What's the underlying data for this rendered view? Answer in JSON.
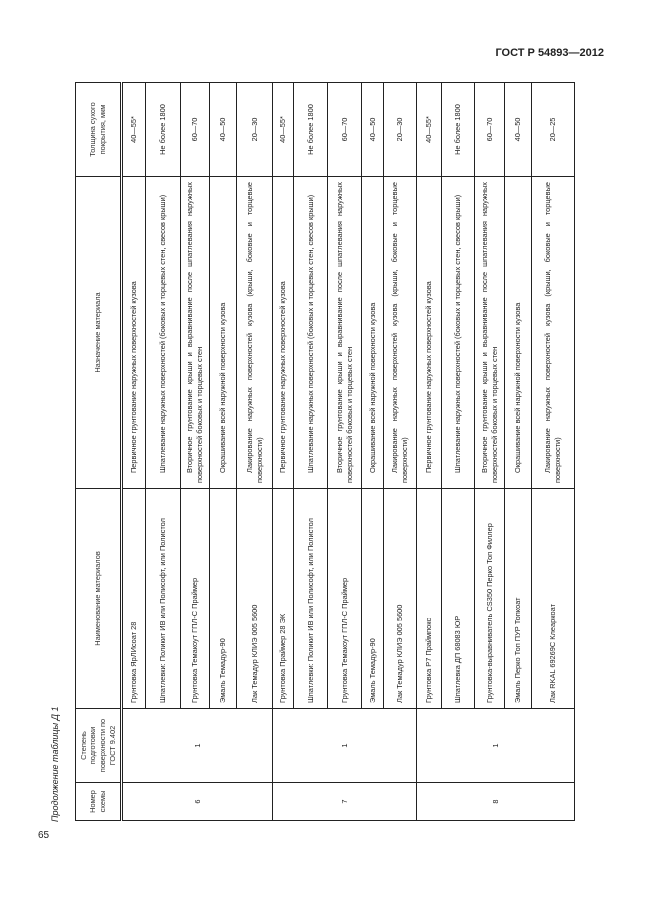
{
  "header": {
    "doc_title": "ГОСТ Р 54893—2012",
    "page_number": "65"
  },
  "caption": "Продолжение таблицы Д 1",
  "table": {
    "columns": [
      "Номер схемы",
      "Степень подготовки поверхности по ГОСТ 9.402",
      "Наименование материалов",
      "Назначение материала",
      "Толщина сухого покрытия, мкм"
    ],
    "groups": [
      {
        "scheme": "6",
        "degree": "1",
        "rows": [
          {
            "material": "Грунтовка ЯрЛИсоат 28",
            "purpose": "Первичное грунтование наружных поверхностей кузова",
            "thickness": "40—55*"
          },
          {
            "material": "Шпатлевки: Поликит ИВ или Полисофт, или Полистол",
            "purpose": "Шпатлевание наружных поверхностей (боковых и торцевых стен, свесов крыши)",
            "thickness": "Не более 1800"
          },
          {
            "material": "Грунтовка Темакоут ГПЛ-С Праймер",
            "purpose": "Вторичное грунтование крыши и выравнивание после шпатлевания наружных поверхностей боковых и торцевых стен",
            "thickness": "60—70"
          },
          {
            "material": "Эмаль Темадур-90",
            "purpose": "Окрашивание всей наружной поверхности кузова",
            "thickness": "40—50"
          },
          {
            "material": "Лак Темадур КЛИЭ 005 5600",
            "purpose": "Лакирование наружных поверхностей кузова (крыши, боковые и торцевые поверхности)",
            "thickness": "20—30"
          }
        ]
      },
      {
        "scheme": "7",
        "degree": "1",
        "rows": [
          {
            "material": "Грунтовка Праймер 28 ЭК",
            "purpose": "Первичное грунтование наружных поверхностей кузова",
            "thickness": "40—55*"
          },
          {
            "material": "Шпатлевки: Поликит ИВ или Полисофт, или Полистол",
            "purpose": "Шпатлевание наружных поверхностей (боковых и торцевых стен, свесов крыши)",
            "thickness": "Не более 1800"
          },
          {
            "material": "Грунтовка Темакоут ГПЛ-С Праймер",
            "purpose": "Вторичное грунтование крыши и выравнивание после шпатлевания наружных поверхностей боковых и торцевых стен",
            "thickness": "60—70"
          },
          {
            "material": "Эмаль Темадур-90",
            "purpose": "Окрашивание всей наружной поверхности кузова",
            "thickness": "40—50"
          },
          {
            "material": "Лак Темадур КЛИЭ 005 5600",
            "purpose": "Лакирование наружных поверхностей кузова (крыши, боковые и торцевые поверхности)",
            "thickness": "20—30"
          }
        ]
      },
      {
        "scheme": "8",
        "degree": "1",
        "rows": [
          {
            "material": "Грунтовка Р7 Праймпокс",
            "purpose": "Первичное грунтование наружных поверхностей кузова",
            "thickness": "40—55*"
          },
          {
            "material": "Шпатлевка ДП 68083 ЮР",
            "purpose": "Шпатлевание наружных поверхностей (боковых и торцевых стен, свесов крыши)",
            "thickness": "Не более 1800"
          },
          {
            "material": "Грунтовка-выравниватель CS350 Перко Топ Филлер",
            "purpose": "Вторичное грунтование крыши и выравнивание после шпатлевания наружных поверхностей боковых и торцевых стен",
            "thickness": "60—70"
          },
          {
            "material": "Эмаль Перко Топ ПУР Топкоат",
            "purpose": "Окрашивание всей наружной поверхности кузова",
            "thickness": "40—50"
          },
          {
            "material": "Лак RKAL 69269C Клеаркоат",
            "purpose": "Лакирование наружных поверхностей кузова (крыши, боковые и торцевые поверхности)",
            "thickness": "20—25"
          }
        ]
      }
    ]
  }
}
